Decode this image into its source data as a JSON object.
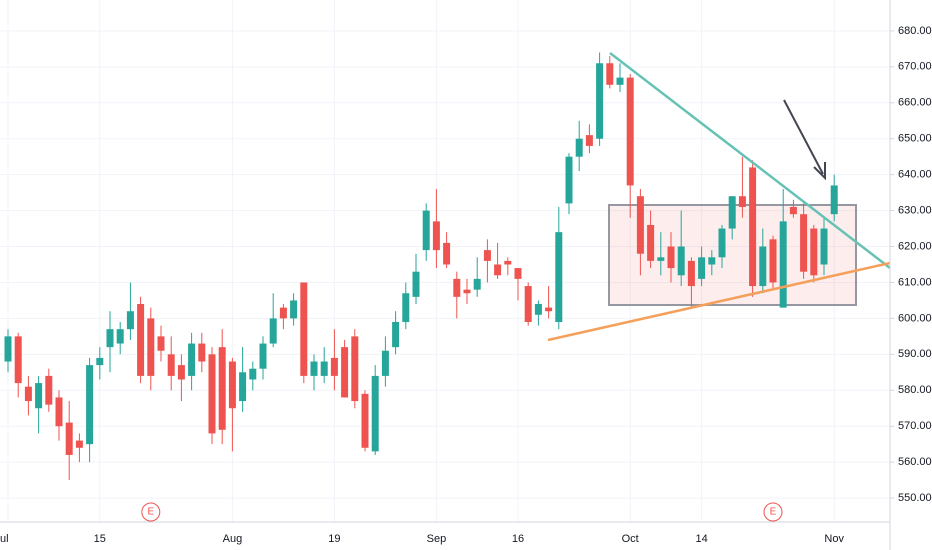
{
  "chart_data": {
    "type": "candlestick",
    "categories": [
      "ul",
      null,
      null,
      null,
      null,
      null,
      null,
      null,
      null,
      "15",
      null,
      null,
      null,
      null,
      null,
      null,
      null,
      null,
      null,
      null,
      null,
      null,
      "Aug",
      null,
      null,
      null,
      null,
      null,
      null,
      null,
      null,
      null,
      "19",
      null,
      null,
      null,
      null,
      null,
      null,
      null,
      null,
      null,
      "Sep",
      null,
      null,
      null,
      null,
      null,
      null,
      null,
      "16",
      null,
      null,
      null,
      null,
      null,
      null,
      null,
      null,
      null,
      null,
      "Oct",
      null,
      null,
      null,
      null,
      null,
      null,
      "14",
      null,
      null,
      null,
      null,
      null,
      null,
      null,
      null,
      null,
      null,
      null,
      null,
      "Nov"
    ],
    "open": [
      588,
      595,
      581,
      575,
      584,
      578,
      571,
      566,
      565,
      587,
      592,
      593,
      597,
      604,
      600,
      595,
      590,
      587,
      584,
      593,
      590,
      592,
      588,
      577,
      583,
      586,
      593,
      603,
      600,
      610,
      584,
      584,
      589,
      592,
      595,
      579,
      563,
      584,
      592,
      599,
      606,
      619,
      627,
      621,
      611,
      608,
      608,
      619,
      615,
      616,
      614,
      609,
      601,
      603,
      599,
      632,
      645,
      651,
      650,
      671,
      665,
      667,
      634,
      626,
      616,
      620,
      612,
      616,
      611,
      615,
      617,
      625,
      634,
      642,
      609,
      622,
      603,
      631,
      629,
      625,
      615,
      629
    ],
    "high": [
      597,
      596,
      584,
      584,
      586,
      580,
      577,
      568,
      589,
      592,
      602,
      599,
      610,
      606,
      603,
      598,
      595,
      590,
      596,
      596,
      592,
      597,
      589,
      592,
      588,
      595,
      607,
      604,
      607,
      610,
      590,
      592,
      597,
      594,
      597,
      580,
      587,
      595,
      602,
      610,
      618,
      632,
      636,
      624,
      613,
      611,
      617,
      622,
      621,
      617,
      614,
      610,
      605,
      609,
      631,
      646,
      655,
      654,
      674,
      673,
      671,
      668,
      636,
      630,
      624,
      624,
      630,
      617,
      620,
      619,
      626,
      634,
      645,
      644,
      625,
      623,
      636,
      633,
      632,
      626,
      628,
      640
    ],
    "low": [
      585,
      578,
      573,
      568,
      574,
      566,
      555,
      560,
      560,
      583,
      585,
      590,
      594,
      582,
      580,
      588,
      580,
      577,
      580,
      585,
      565,
      565,
      563,
      574,
      580,
      583,
      592,
      597,
      598,
      582,
      580,
      582,
      580,
      578,
      575,
      563,
      562,
      581,
      590,
      597,
      604,
      616,
      614,
      614,
      600,
      604,
      606,
      610,
      611,
      612,
      605,
      598,
      598,
      600,
      597,
      629,
      641,
      646,
      648,
      664,
      663,
      628,
      612,
      614,
      612,
      610,
      609,
      603,
      609,
      612,
      614,
      622,
      628,
      606,
      607,
      608,
      603,
      628,
      611,
      610,
      612,
      627
    ],
    "close": [
      595,
      582,
      577,
      582,
      576,
      570,
      562,
      564,
      587,
      589,
      597,
      597,
      602,
      584,
      584,
      591,
      584,
      583,
      593,
      588,
      568,
      569,
      575,
      585,
      586,
      593,
      600,
      600,
      605,
      584,
      588,
      588,
      584,
      578,
      577,
      564,
      584,
      591,
      599,
      607,
      613,
      630,
      619,
      615,
      606,
      607,
      611,
      616,
      612,
      615,
      611,
      599,
      604,
      602,
      624,
      645,
      650,
      648,
      671,
      665,
      667,
      637,
      618,
      616,
      617,
      614,
      620,
      609,
      617,
      617,
      625,
      634,
      631,
      609,
      620,
      610,
      627,
      629,
      613,
      612,
      625,
      637
    ],
    "up_color": "#26a69a",
    "down_color": "#ef5350",
    "ylim": [
      543.9,
      688.6
    ],
    "yticks": [
      {
        "value": 550,
        "label": "550.00"
      },
      {
        "value": 560,
        "label": "560.00"
      },
      {
        "value": 570,
        "label": "570.00"
      },
      {
        "value": 580,
        "label": "580.00"
      },
      {
        "value": 590,
        "label": "590.00"
      },
      {
        "value": 600,
        "label": "600.00"
      },
      {
        "value": 610,
        "label": "610.00"
      },
      {
        "value": 620,
        "label": "620.00"
      },
      {
        "value": 630,
        "label": "630.00"
      },
      {
        "value": 640,
        "label": "640.00"
      },
      {
        "value": 650,
        "label": "650.00"
      },
      {
        "value": 660,
        "label": "660.00"
      },
      {
        "value": 670,
        "label": "670.00"
      },
      {
        "value": 680,
        "label": "680.00"
      }
    ],
    "grid": true,
    "annotations": [
      {
        "text": "E",
        "category": 14
      },
      {
        "text": "E",
        "category": 75
      }
    ]
  }
}
